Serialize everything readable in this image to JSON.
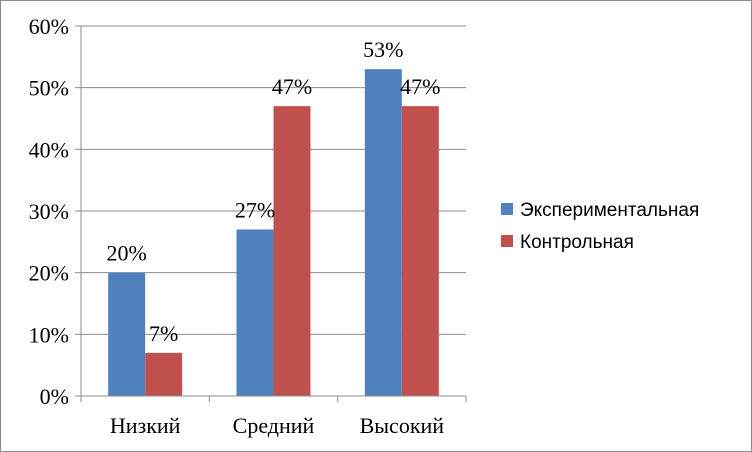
{
  "chart_data": {
    "type": "bar",
    "title": "",
    "xlabel": "",
    "ylabel": "",
    "categories": [
      "Низкий",
      "Средний",
      "Высокий"
    ],
    "series": [
      {
        "name": "Экспериментальная",
        "values": [
          20,
          27,
          53
        ],
        "labels": [
          "20%",
          "27%",
          "53%"
        ],
        "color": "#4f81bd"
      },
      {
        "name": "Контрольная",
        "values": [
          7,
          47,
          47
        ],
        "labels": [
          "7%",
          "47%",
          "47%"
        ],
        "color": "#c0504d"
      }
    ],
    "ylim": [
      0,
      60
    ],
    "yticks": [
      "0%",
      "10%",
      "20%",
      "30%",
      "40%",
      "50%",
      "60%"
    ],
    "grid": true,
    "legend_position": "right"
  }
}
